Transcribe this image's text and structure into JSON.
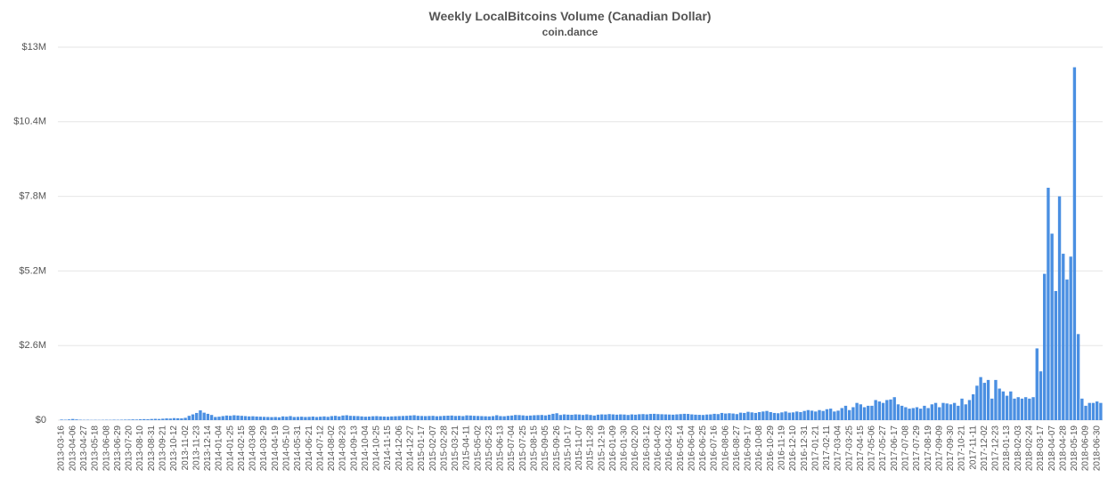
{
  "chart_data": {
    "type": "bar",
    "title": "Weekly LocalBitcoins Volume (Canadian Dollar)",
    "subtitle": "coin.dance",
    "color": "#4a8fe2",
    "grid": true,
    "ylim": [
      0,
      13000000
    ],
    "yticks": [
      {
        "value": 0,
        "label": "$0"
      },
      {
        "value": 2600000,
        "label": "$2.6M"
      },
      {
        "value": 5200000,
        "label": "$5.2M"
      },
      {
        "value": 7800000,
        "label": "$7.8M"
      },
      {
        "value": 10400000,
        "label": "$10.4M"
      },
      {
        "value": 13000000,
        "label": "$13M"
      }
    ],
    "categories": [
      "2013-03-16",
      null,
      null,
      "2013-04-06",
      null,
      null,
      "2013-04-27",
      null,
      null,
      "2013-05-18",
      null,
      null,
      "2013-06-08",
      null,
      null,
      "2013-06-29",
      null,
      null,
      "2013-07-20",
      null,
      null,
      "2013-08-10",
      null,
      null,
      "2013-08-31",
      null,
      null,
      "2013-09-21",
      null,
      null,
      "2013-10-12",
      null,
      null,
      "2013-11-02",
      null,
      null,
      "2013-11-23",
      null,
      null,
      "2013-12-14",
      null,
      null,
      "2014-01-04",
      null,
      null,
      "2014-01-25",
      null,
      null,
      "2014-02-15",
      null,
      null,
      "2014-03-08",
      null,
      null,
      "2014-03-29",
      null,
      null,
      "2014-04-19",
      null,
      null,
      "2014-05-10",
      null,
      null,
      "2014-05-31",
      null,
      null,
      "2014-06-21",
      null,
      null,
      "2014-07-12",
      null,
      null,
      "2014-08-02",
      null,
      null,
      "2014-08-23",
      null,
      null,
      "2014-09-13",
      null,
      null,
      "2014-10-04",
      null,
      null,
      "2014-10-25",
      null,
      null,
      "2014-11-15",
      null,
      null,
      "2014-12-06",
      null,
      null,
      "2014-12-27",
      null,
      null,
      "2015-01-17",
      null,
      null,
      "2015-02-07",
      null,
      null,
      "2015-02-28",
      null,
      null,
      "2015-03-21",
      null,
      null,
      "2015-04-11",
      null,
      null,
      "2015-05-02",
      null,
      null,
      "2015-05-23",
      null,
      null,
      "2015-06-13",
      null,
      null,
      "2015-07-04",
      null,
      null,
      "2015-07-25",
      null,
      null,
      "2015-08-15",
      null,
      null,
      "2015-09-05",
      null,
      null,
      "2015-09-26",
      null,
      null,
      "2015-10-17",
      null,
      null,
      "2015-11-07",
      null,
      null,
      "2015-11-28",
      null,
      null,
      "2015-12-19",
      null,
      null,
      "2016-01-09",
      null,
      null,
      "2016-01-30",
      null,
      null,
      "2016-02-20",
      null,
      null,
      "2016-03-12",
      null,
      null,
      "2016-04-02",
      null,
      null,
      "2016-04-23",
      null,
      null,
      "2016-05-14",
      null,
      null,
      "2016-06-04",
      null,
      null,
      "2016-06-25",
      null,
      null,
      "2016-07-16",
      null,
      null,
      "2016-08-06",
      null,
      null,
      "2016-08-27",
      null,
      null,
      "2016-09-17",
      null,
      null,
      "2016-10-08",
      null,
      null,
      "2016-10-29",
      null,
      null,
      "2016-11-19",
      null,
      null,
      "2016-12-10",
      null,
      null,
      "2016-12-31",
      null,
      null,
      "2017-01-21",
      null,
      null,
      "2017-02-11",
      null,
      null,
      "2017-03-04",
      null,
      null,
      "2017-03-25",
      null,
      null,
      "2017-04-15",
      null,
      null,
      "2017-05-06",
      null,
      null,
      "2017-05-27",
      null,
      null,
      "2017-06-17",
      null,
      null,
      "2017-07-08",
      null,
      null,
      "2017-07-29",
      null,
      null,
      "2017-08-19",
      null,
      null,
      "2017-09-09",
      null,
      null,
      "2017-09-30",
      null,
      null,
      "2017-10-21",
      null,
      null,
      "2017-11-11",
      null,
      null,
      "2017-12-02",
      null,
      null,
      "2017-12-23",
      null,
      null,
      "2018-01-13",
      null,
      null,
      "2018-02-03",
      null,
      null,
      "2018-02-24",
      null,
      null,
      "2018-03-17",
      null,
      null,
      "2018-04-07",
      null,
      null,
      "2018-04-28",
      null,
      null,
      "2018-05-19",
      null,
      null,
      "2018-06-09",
      null,
      null,
      "2018-06-30",
      null
    ],
    "values": [
      20000,
      15000,
      25000,
      40000,
      25000,
      15000,
      10000,
      12000,
      8000,
      10000,
      8000,
      10000,
      12000,
      10000,
      15000,
      12000,
      15000,
      18000,
      20000,
      25000,
      22000,
      30000,
      35000,
      30000,
      40000,
      45000,
      40000,
      50000,
      60000,
      55000,
      70000,
      65000,
      60000,
      80000,
      150000,
      200000,
      250000,
      340000,
      260000,
      220000,
      180000,
      110000,
      120000,
      140000,
      160000,
      150000,
      170000,
      160000,
      150000,
      140000,
      130000,
      135000,
      125000,
      120000,
      115000,
      110000,
      105000,
      110000,
      100000,
      130000,
      120000,
      140000,
      110000,
      115000,
      120000,
      110000,
      115000,
      125000,
      110000,
      120000,
      130000,
      115000,
      140000,
      150000,
      130000,
      160000,
      170000,
      150000,
      145000,
      140000,
      130000,
      120000,
      125000,
      135000,
      140000,
      130000,
      125000,
      120000,
      130000,
      135000,
      140000,
      145000,
      150000,
      160000,
      170000,
      150000,
      145000,
      140000,
      145000,
      150000,
      135000,
      140000,
      150000,
      155000,
      160000,
      145000,
      150000,
      140000,
      165000,
      160000,
      150000,
      145000,
      140000,
      135000,
      130000,
      140000,
      170000,
      140000,
      135000,
      150000,
      160000,
      180000,
      175000,
      165000,
      150000,
      160000,
      170000,
      175000,
      180000,
      165000,
      190000,
      220000,
      240000,
      180000,
      200000,
      190000,
      185000,
      200000,
      195000,
      180000,
      200000,
      180000,
      160000,
      190000,
      200000,
      195000,
      210000,
      200000,
      190000,
      200000,
      195000,
      180000,
      200000,
      190000,
      205000,
      210000,
      200000,
      215000,
      220000,
      210000,
      205000,
      200000,
      195000,
      190000,
      200000,
      210000,
      220000,
      215000,
      200000,
      190000,
      185000,
      180000,
      195000,
      200000,
      220000,
      210000,
      250000,
      230000,
      240000,
      230000,
      210000,
      260000,
      250000,
      290000,
      270000,
      250000,
      280000,
      300000,
      320000,
      280000,
      250000,
      240000,
      270000,
      300000,
      260000,
      270000,
      300000,
      280000,
      320000,
      350000,
      330000,
      300000,
      350000,
      320000,
      380000,
      400000,
      300000,
      330000,
      420000,
      500000,
      350000,
      450000,
      600000,
      550000,
      450000,
      500000,
      500000,
      700000,
      650000,
      600000,
      700000,
      720000,
      800000,
      550000,
      500000,
      450000,
      400000,
      420000,
      450000,
      400000,
      500000,
      420000,
      550000,
      600000,
      450000,
      600000,
      580000,
      550000,
      600000,
      500000,
      750000,
      550000,
      700000,
      900000,
      1200000,
      1500000,
      1300000,
      1400000,
      750000,
      1400000,
      1100000,
      1000000,
      850000,
      1000000,
      750000,
      800000,
      750000,
      800000,
      750000,
      800000,
      2500000,
      1700000,
      5100000,
      8100000,
      6500000,
      4500000,
      7800000,
      5800000,
      4900000,
      5700000,
      12300000,
      3000000,
      750000,
      500000,
      600000,
      600000,
      650000,
      600000
    ]
  }
}
